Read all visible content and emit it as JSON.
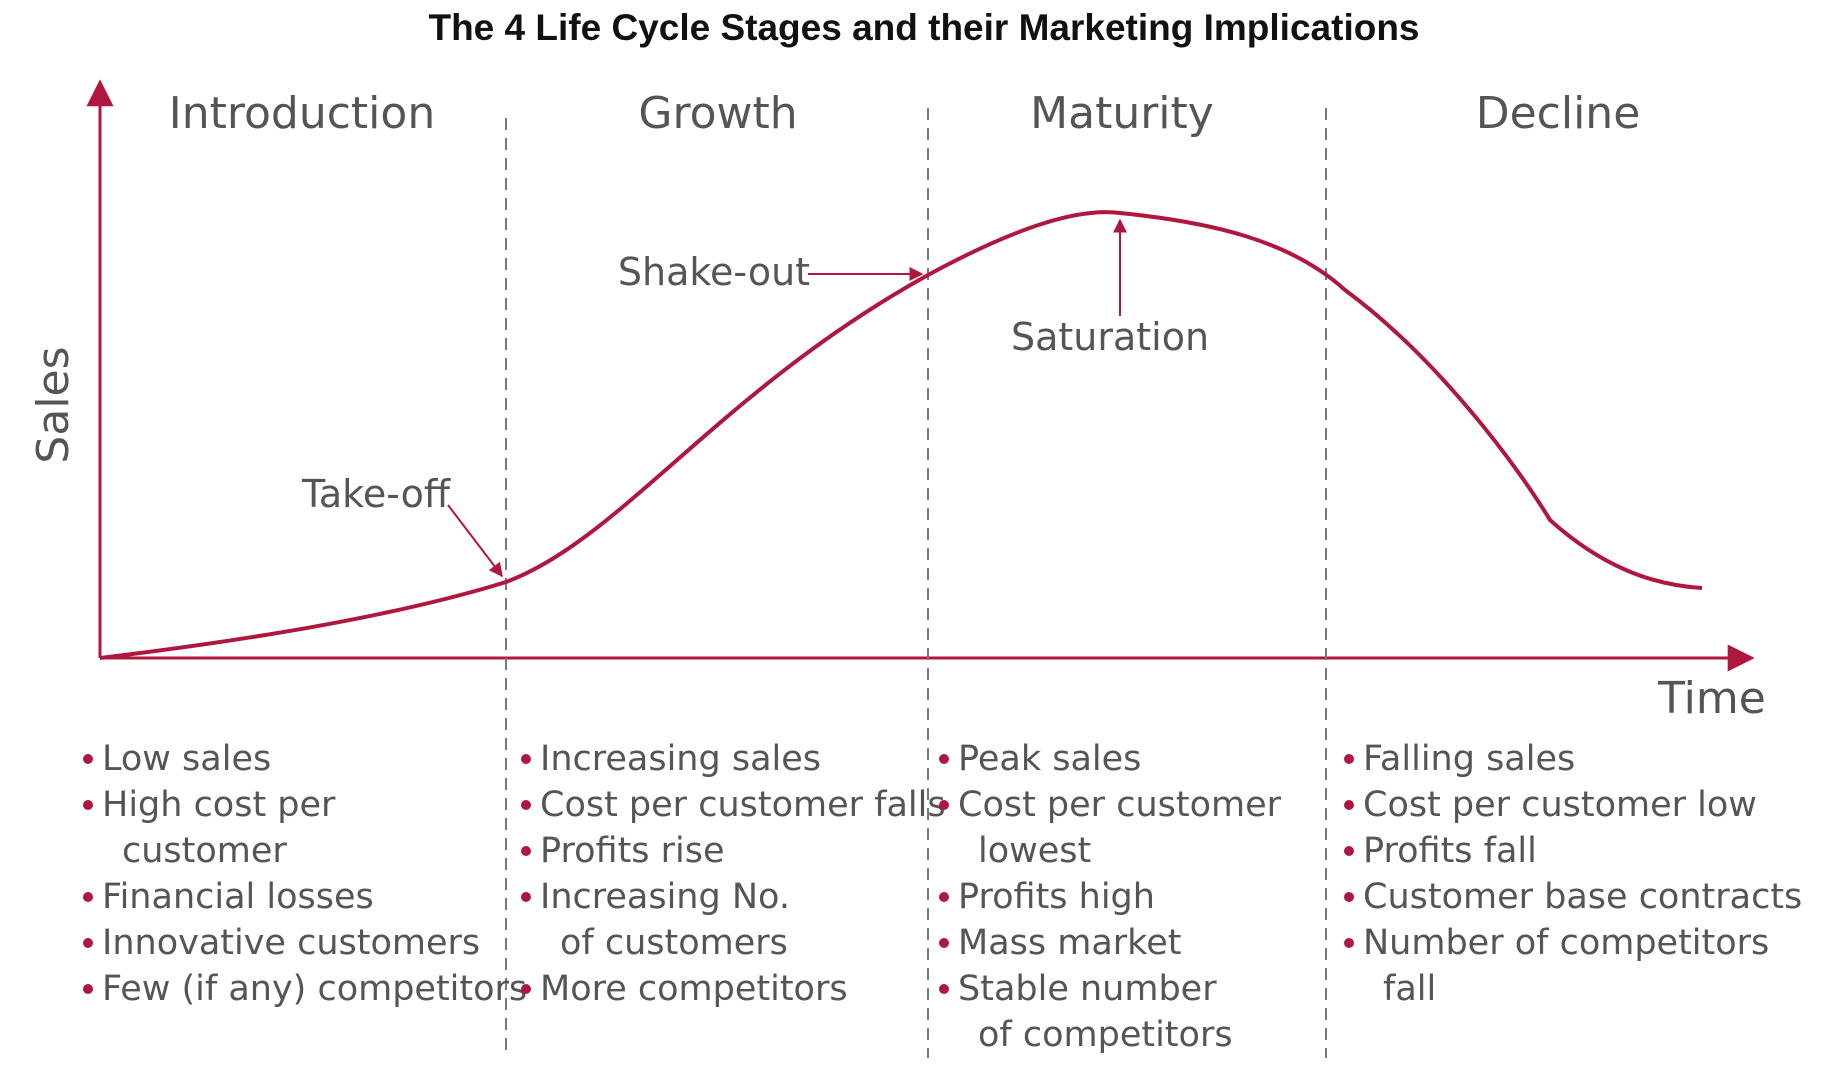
{
  "title": "The 4 Life Cycle Stages and their Marketing Implications",
  "axes": {
    "y_label": "Sales",
    "x_label": "Time"
  },
  "colors": {
    "curve": "#b0173f",
    "axis": "#b0173f",
    "divider": "#777777",
    "text": "#555555",
    "title": "#111111"
  },
  "stages": [
    {
      "name": "Introduction",
      "bullets": [
        [
          "Low sales"
        ],
        [
          "High cost per",
          "customer"
        ],
        [
          "Financial losses"
        ],
        [
          "Innovative customers"
        ],
        [
          "Few (if any) competitors"
        ]
      ]
    },
    {
      "name": "Growth",
      "bullets": [
        [
          "Increasing sales"
        ],
        [
          "Cost per customer falls"
        ],
        [
          "Profits rise"
        ],
        [
          "Increasing No.",
          "of customers"
        ],
        [
          "More competitors"
        ]
      ]
    },
    {
      "name": "Maturity",
      "bullets": [
        [
          "Peak sales"
        ],
        [
          "Cost per customer",
          "lowest"
        ],
        [
          "Profits high"
        ],
        [
          "Mass market"
        ],
        [
          "Stable number",
          "of competitors"
        ]
      ]
    },
    {
      "name": "Decline",
      "bullets": [
        [
          "Falling sales"
        ],
        [
          "Cost per customer low"
        ],
        [
          "Profits fall"
        ],
        [
          "Customer base contracts"
        ],
        [
          "Number of competitors",
          "fall"
        ]
      ]
    }
  ],
  "annotations": {
    "takeoff": "Take-off",
    "shakeout": "Shake-out",
    "saturation": "Saturation"
  }
}
